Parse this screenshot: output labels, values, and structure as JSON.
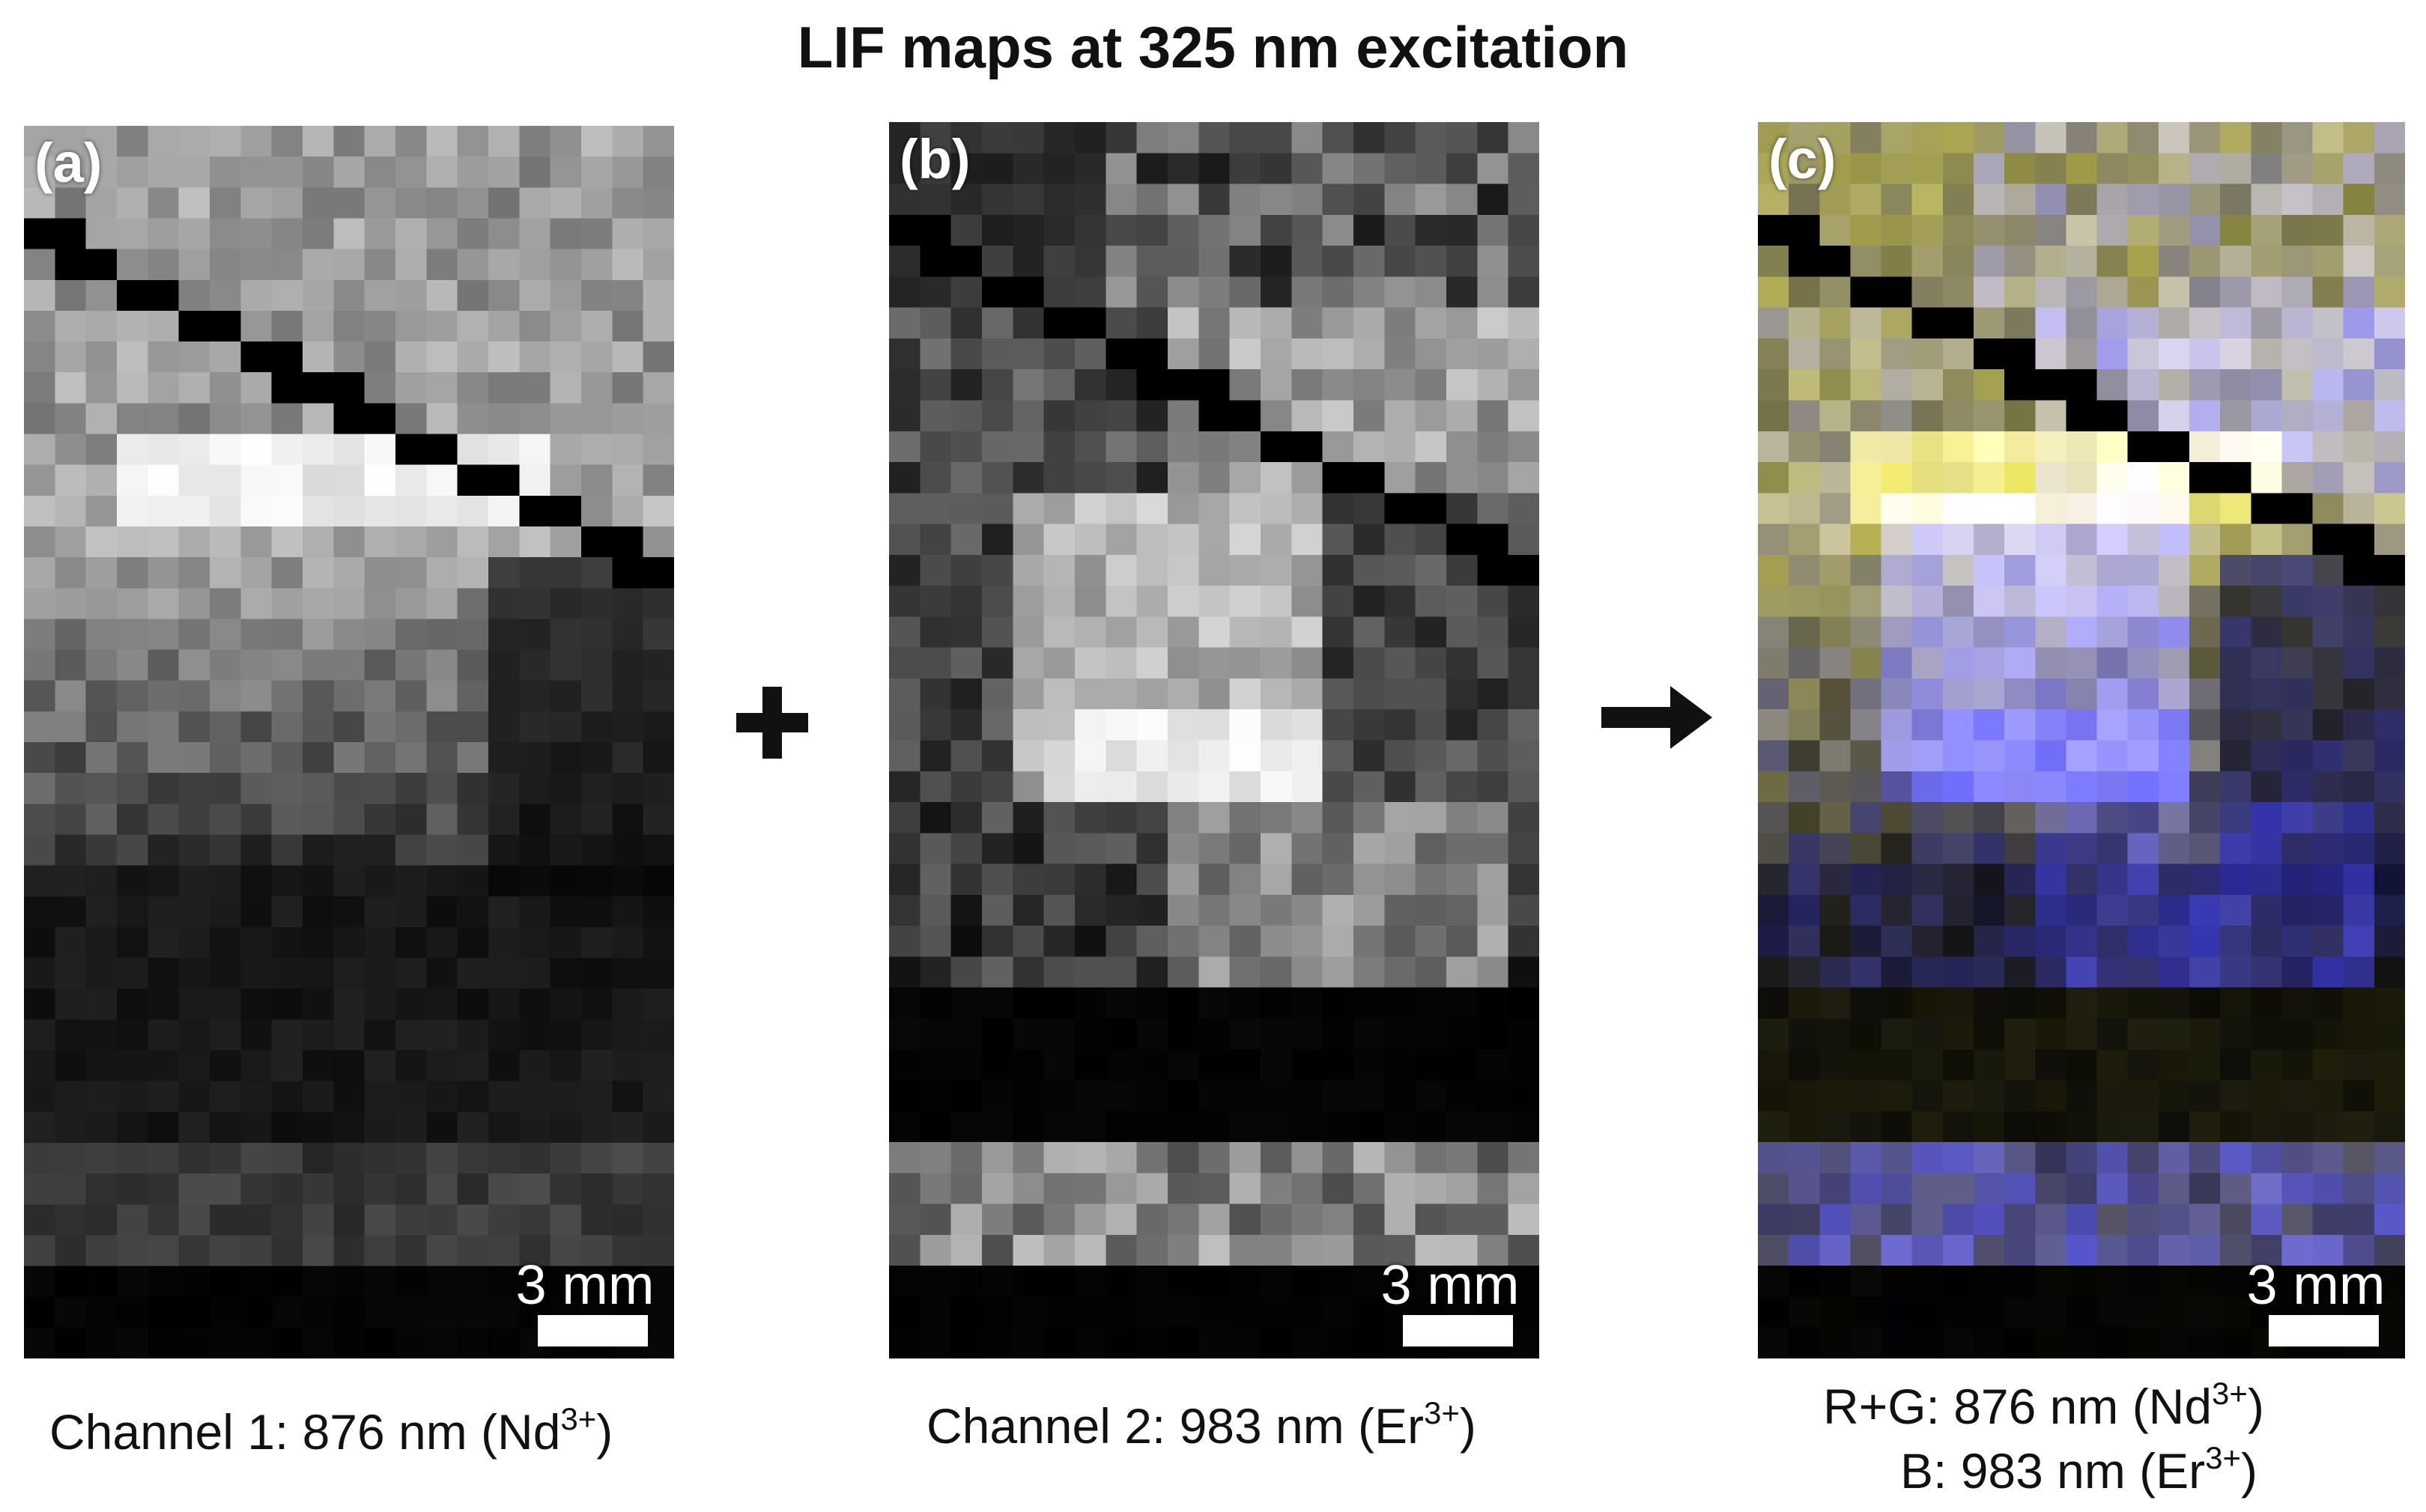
{
  "figure": {
    "title": "LIF maps at 325 nm excitation"
  },
  "panels": [
    {
      "letter": "(a)",
      "scale_label": "3 mm",
      "caption": {
        "prefix": "Channel 1: 876 nm (Nd",
        "sup": "3+",
        "suffix": ")"
      }
    },
    {
      "letter": "(b)",
      "scale_label": "3 mm",
      "caption": {
        "prefix": "Channel 2: 983 nm (Er",
        "sup": "3+",
        "suffix": ")"
      }
    },
    {
      "letter": "(c)",
      "scale_label": "3 mm",
      "caption_line1": {
        "prefix": "R+G: 876 nm (Nd",
        "sup": "3+",
        "suffix": ")"
      },
      "caption_line2": {
        "prefix": "B: 983 nm (Er",
        "sup": "3+",
        "suffix": ")"
      }
    }
  ],
  "operators": {
    "between_a_b": "plus-icon",
    "between_b_c": "arrow-right-icon"
  },
  "colors": {
    "nd_channel": "#e6e066",
    "er_channel": "#5a5aff",
    "background": "#000000",
    "text": "#111111"
  }
}
